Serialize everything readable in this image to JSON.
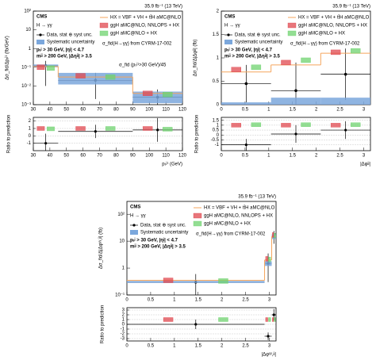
{
  "chart_data": [
    {
      "type": "histogram",
      "title": "CMS",
      "channel": "H → γγ",
      "lumi": "35.9 fb⁻¹ (13 TeV)",
      "xlabel": "pₜʲ¹ (GeV)",
      "ylabel": "Δσ_fid/Δpₜʲ¹ (fb/GeV)",
      "log_y": true,
      "bins": [
        30,
        45,
        90,
        120
      ],
      "xlim": [
        30,
        120
      ],
      "xticks": [
        30,
        40,
        50,
        60,
        70,
        80,
        90,
        100,
        110,
        120
      ],
      "ylim": [
        0.001,
        100
      ],
      "yticks": [
        {
          "value": 0.001,
          "label": "10⁻³"
        },
        {
          "value": 0.01,
          "label": "10⁻²"
        },
        {
          "value": 0.1,
          "label": "10⁻¹"
        },
        1,
        10,
        {
          "value": 100,
          "label": "10²"
        }
      ],
      "series": [
        {
          "name": "Data, stat ⊕ syst unc.",
          "style": "points",
          "color": "#000000",
          "values": [
            0.12,
            0.02,
            0.0025
          ],
          "err_low": [
            0.11,
            0.018,
            0.0022
          ],
          "err_high": [
            0.1,
            0.03,
            0.004
          ]
        },
        {
          "name": "Systematic uncertainty",
          "style": "band",
          "color": "#7ba7dc",
          "low": [
            0.1,
            0.012,
            0.0012
          ],
          "high": [
            0.14,
            0.05,
            0.005
          ]
        },
        {
          "name": "HX = VBF + VH + tt̄H aMC@NLO",
          "style": "step",
          "color": "#f5a55c",
          "values": [
            0.11,
            0.03,
            0.004
          ]
        },
        {
          "name": "ggH aMC@NLO, NNLOPS + HX",
          "style": "box",
          "color": "#e0484f",
          "values": [
            0.1,
            0.035,
            0.004
          ]
        },
        {
          "name": "ggH aMC@NLO + HX",
          "style": "box",
          "color": "#6fd36f",
          "values": [
            0.09,
            0.03,
            0.0035
          ]
        }
      ],
      "notes": [
        "pₜʲ > 30 GeV, |ηʲ| < 4.7",
        "mʲʲ > 200 GeV, |Δηʲʲ| > 3.5"
      ],
      "source": "σ_fid(H→γγ) from CYRM-17-002",
      "annotation": "σ_fid (pₜʲ¹>30 GeV)/45",
      "ratio": {
        "label": "Ratio to prediction",
        "ylim": [
          -2,
          2.5
        ],
        "yticks": [
          -1,
          0,
          1,
          2
        ],
        "values": [
          -1.0,
          0.6,
          0.8
        ],
        "errors": [
          1.3,
          0.9,
          1.6
        ],
        "ggh_nnlops": [
          1,
          1,
          1
        ],
        "ggh_amc": [
          0.95,
          1.0,
          0.9
        ]
      }
    },
    {
      "type": "histogram",
      "title": "CMS",
      "channel": "H → γγ",
      "lumi": "35.9 fb⁻¹ (13 TeV)",
      "xlabel": "|Δφʲʲ|",
      "ylabel": "Δσ_fid/Δ|Δφʲʲ| (fb)",
      "log_y": false,
      "bins": [
        0,
        1.0472,
        2.0944,
        3.1416
      ],
      "xlim": [
        0,
        3.1416
      ],
      "xticks": [
        0,
        0.5,
        1,
        1.5,
        2,
        2.5,
        3
      ],
      "ylim": [
        0,
        2
      ],
      "yticks": [
        0,
        0.5,
        1,
        1.5,
        2
      ],
      "series": [
        {
          "name": "Data, stat ⊕ syst unc.",
          "style": "points",
          "color": "#000000",
          "values": [
            0.45,
            0.3,
            0.65
          ],
          "err_low": [
            0.4,
            0.3,
            0.55
          ],
          "err_high": [
            0.4,
            0.6,
            0.55
          ]
        },
        {
          "name": "Systematic uncertainty",
          "style": "band",
          "color": "#7ba7dc",
          "low": [
            0,
            0,
            0
          ],
          "high": [
            0.05,
            0.15,
            0.15
          ]
        },
        {
          "name": "HX = VBF + VH + tt̄H aMC@NLO",
          "style": "step",
          "color": "#f5a55c",
          "values": [
            0.7,
            0.85,
            1.1
          ]
        },
        {
          "name": "ggH aMC@NLO, NNLOPS + HX",
          "style": "box",
          "color": "#e0484f",
          "values": [
            0.75,
            0.9,
            1.12
          ]
        },
        {
          "name": "ggH aMC@NLO + HX",
          "style": "box",
          "color": "#6fd36f",
          "values": [
            0.8,
            0.95,
            1.15
          ]
        }
      ],
      "notes": [
        "pₜʲ > 30 GeV, |ηʲ| < 4.7",
        "mʲʲ > 200 GeV, |Δηʲʲ| > 3.5"
      ],
      "source": "σ_fid(H→γγ) from CYRM-17-002",
      "ratio": {
        "label": "Ratio to prediction",
        "ylim": [
          -1.6,
          1.8
        ],
        "yticks": [
          -1,
          -0.5,
          0,
          0.5,
          1,
          1.5
        ],
        "values": [
          -1.0,
          0.1,
          0.5
        ],
        "errors": [
          0.6,
          0.9,
          0.9
        ],
        "ggh_nnlops": [
          1,
          1,
          1
        ],
        "ggh_amc": [
          1.05,
          1.05,
          1.05
        ]
      }
    },
    {
      "type": "histogram",
      "title": "CMS",
      "channel": "H → γγ",
      "lumi": "35.9 fb⁻¹ (13 TeV)",
      "xlabel": "|Δφᵞᵞ,ʲʲ|",
      "ylabel": "Δσ_fid/Δ|Δφᵞᵞ,ʲʲ| (fb)",
      "log_y": true,
      "bins": [
        0,
        2.9,
        3.05,
        3.1416
      ],
      "xlim": [
        0,
        3.1416
      ],
      "xticks": [
        0,
        0.5,
        1,
        1.5,
        2,
        2.5,
        3
      ],
      "ylim": [
        0.1,
        300
      ],
      "yticks": [
        {
          "value": 0.1,
          "label": "10⁻¹"
        },
        1,
        10,
        {
          "value": 100,
          "label": "10²"
        }
      ],
      "series": [
        {
          "name": "Data, stat ⊕ syst unc.",
          "style": "points",
          "color": "#000000",
          "values": [
            0.3,
            1.5,
            15
          ],
          "err_low": [
            0.2,
            1.2,
            7
          ],
          "err_high": [
            0.3,
            2,
            9
          ]
        },
        {
          "name": "Systematic uncertainty",
          "style": "band",
          "color": "#7ba7dc",
          "low": [
            0.28,
            1.2,
            12
          ],
          "high": [
            0.33,
            1.8,
            18
          ]
        },
        {
          "name": "HX = VBF + VH + tt̄H aMC@NLO",
          "style": "step",
          "color": "#f5a55c",
          "values": [
            0.35,
            2,
            15
          ]
        },
        {
          "name": "ggH aMC@NLO, NNLOPS + HX",
          "style": "box",
          "color": "#e0484f",
          "values": [
            0.35,
            2.2,
            17
          ]
        },
        {
          "name": "ggH aMC@NLO + HX",
          "style": "box",
          "color": "#6fd36f",
          "values": [
            0.33,
            2.1,
            16
          ]
        }
      ],
      "notes": [
        "pₜʲ > 30 GeV, |ηʲ| < 4.7",
        "mʲʲ > 200 GeV, |Δηʲʲ| > 3.5"
      ],
      "source": "σ_fid(H→γγ) from CYRM-17-002",
      "ratio": {
        "label": "Ratio to prediction",
        "ylim": [
          -3.5,
          3.5
        ],
        "yticks": [
          -3,
          -2,
          -1,
          0,
          1,
          2,
          3
        ],
        "values": [
          0.0,
          -2.5,
          2.0
        ],
        "errors": [
          1.0,
          0.8,
          1.2
        ],
        "ggh_nnlops": [
          1,
          1,
          1
        ],
        "ggh_amc": [
          1,
          1,
          1
        ]
      }
    }
  ]
}
